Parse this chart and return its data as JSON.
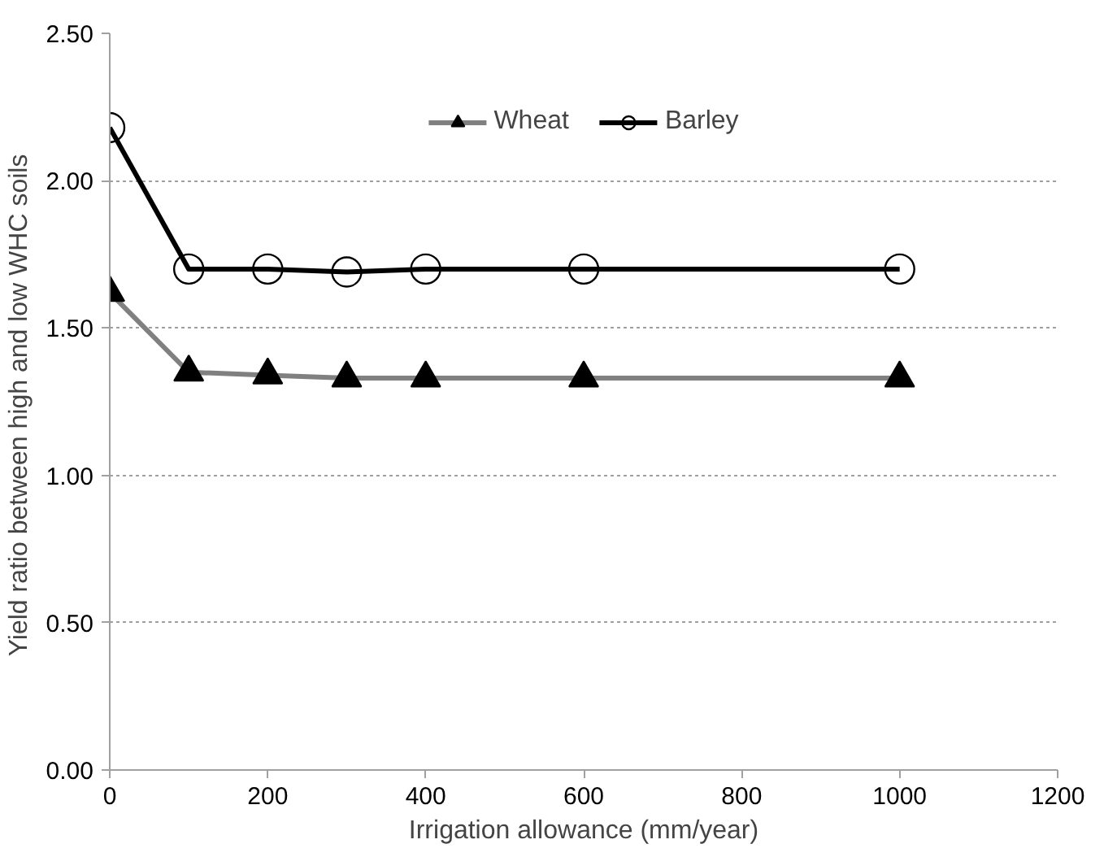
{
  "chart_data": {
    "type": "line",
    "xlabel": "Irrigation allowance (mm/year)",
    "ylabel": "Yield ratio between high  and low WHC soils",
    "x": [
      0,
      100,
      200,
      300,
      400,
      600,
      1000
    ],
    "series": [
      {
        "name": "Wheat",
        "color": "#808080",
        "marker": "triangle",
        "values": [
          1.62,
          1.35,
          1.34,
          1.33,
          1.33,
          1.33,
          1.33
        ]
      },
      {
        "name": "Barley",
        "color": "#000000",
        "marker": "circle",
        "values": [
          2.18,
          1.7,
          1.7,
          1.69,
          1.7,
          1.7,
          1.7
        ]
      }
    ],
    "xlim": [
      0,
      1200
    ],
    "xticks": [
      0,
      200,
      400,
      600,
      800,
      1000,
      1200
    ],
    "ylim": [
      0,
      2.5
    ],
    "yticks": [
      {
        "value": 0,
        "label": "0.00"
      },
      {
        "value": 0.5,
        "label": "0.50"
      },
      {
        "value": 1,
        "label": "1.00"
      },
      {
        "value": 1.5,
        "label": "1.50"
      },
      {
        "value": 2,
        "label": "2.00"
      },
      {
        "value": 2.5,
        "label": "2.50"
      }
    ],
    "grid": "y",
    "legend": "top",
    "line_style": "solid"
  }
}
